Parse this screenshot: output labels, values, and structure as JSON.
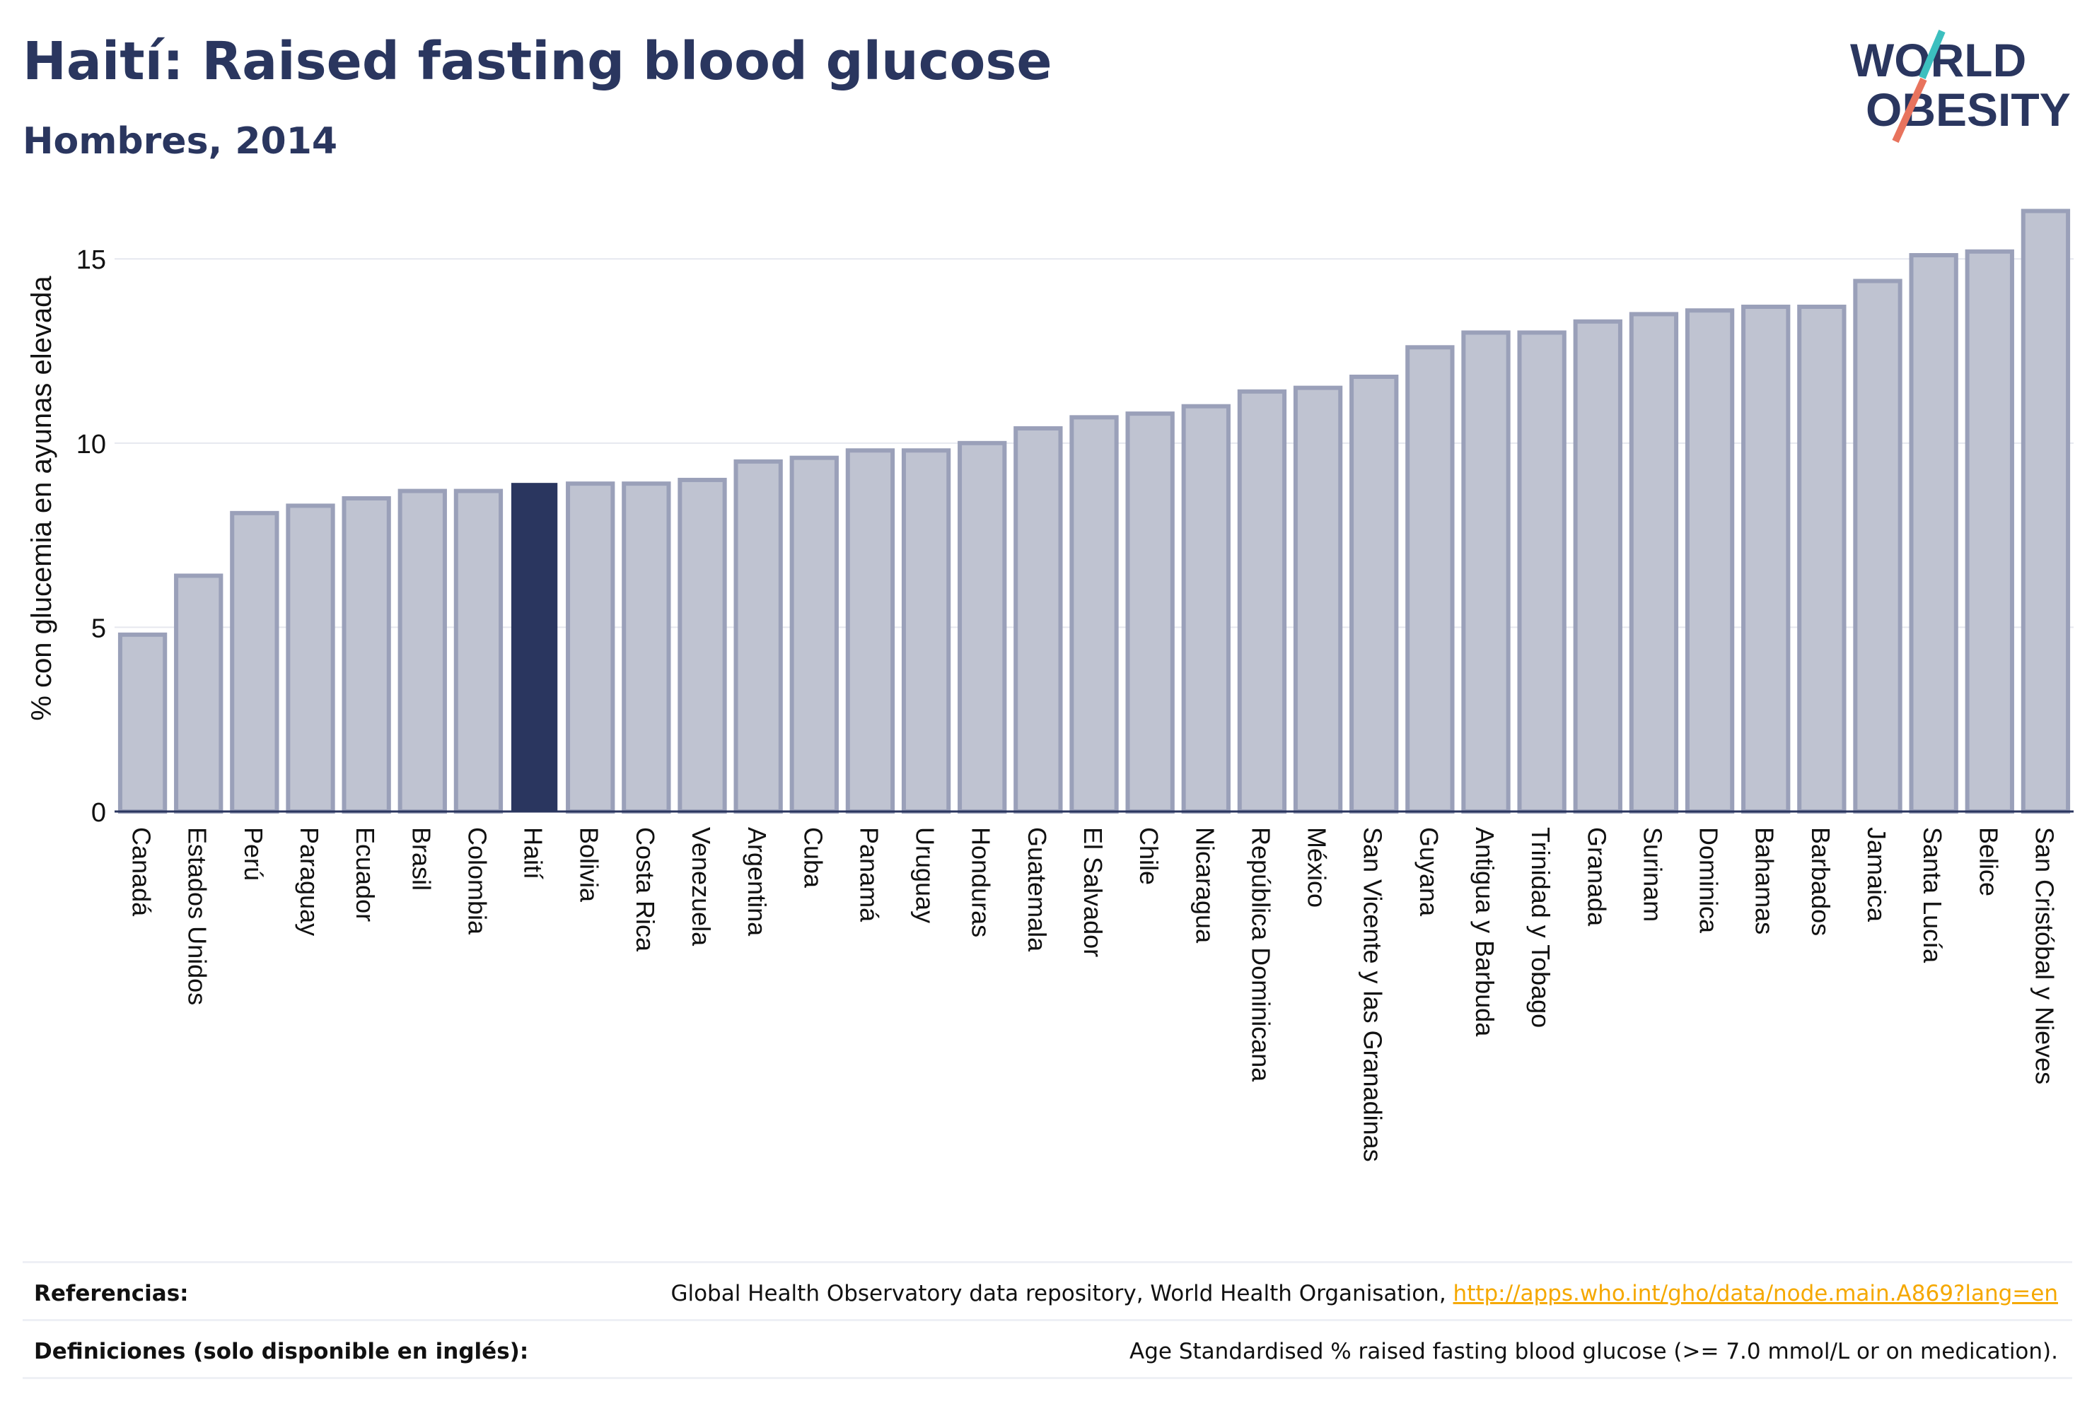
{
  "header": {
    "title": "Haití: Raised fasting blood glucose",
    "subtitle": "Hombres, 2014"
  },
  "logo": {
    "line1": "WORLD",
    "line2": "OBESITY"
  },
  "colors": {
    "highlight": "#2a365f",
    "bar_fill": "#bfc3d1",
    "bar_stroke": "#9aa0b9",
    "grid": "#e6e8ef",
    "logo_teal": "#3cbfbf",
    "logo_coral": "#e8735d"
  },
  "chart_data": {
    "type": "bar",
    "highlight": "Haití",
    "ylabel": "% con glucemia en ayunas elevada",
    "ylim": [
      0,
      17
    ],
    "yticks": [
      0,
      5,
      10,
      15
    ],
    "grid": true,
    "categories": [
      "Canadá",
      "Estados Unidos",
      "Perú",
      "Paraguay",
      "Ecuador",
      "Brasil",
      "Colombia",
      "Haití",
      "Bolivia",
      "Costa Rica",
      "Venezuela",
      "Argentina",
      "Cuba",
      "Panamá",
      "Uruguay",
      "Honduras",
      "Guatemala",
      "El Salvador",
      "Chile",
      "Nicaragua",
      "República Dominicana",
      "México",
      "San Vicente y las Granadinas",
      "Guyana",
      "Antigua y Barbuda",
      "Trinidad y Tobago",
      "Granada",
      "Surinam",
      "Dominica",
      "Bahamas",
      "Barbados",
      "Jamaica",
      "Santa Lucía",
      "Belice",
      "San Cristóbal y Nieves"
    ],
    "values": [
      4.8,
      6.4,
      8.1,
      8.3,
      8.5,
      8.7,
      8.7,
      8.9,
      8.9,
      8.9,
      9.0,
      9.5,
      9.6,
      9.8,
      9.8,
      10.0,
      10.4,
      10.7,
      10.8,
      11.0,
      11.4,
      11.5,
      11.8,
      12.6,
      13.0,
      13.0,
      13.3,
      13.5,
      13.6,
      13.7,
      13.7,
      14.4,
      15.1,
      15.2,
      16.3
    ]
  },
  "footer": {
    "references_label": "Referencias:",
    "references_text": "Global Health Observatory data repository, World Health Organisation, ",
    "references_link": "http://apps.who.int/gho/data/node.main.A869?lang=en",
    "definitions_label": "Definiciones (solo disponible en inglés):",
    "definitions_text": "Age Standardised % raised fasting blood glucose (>= 7.0 mmol/L or on medication)."
  }
}
